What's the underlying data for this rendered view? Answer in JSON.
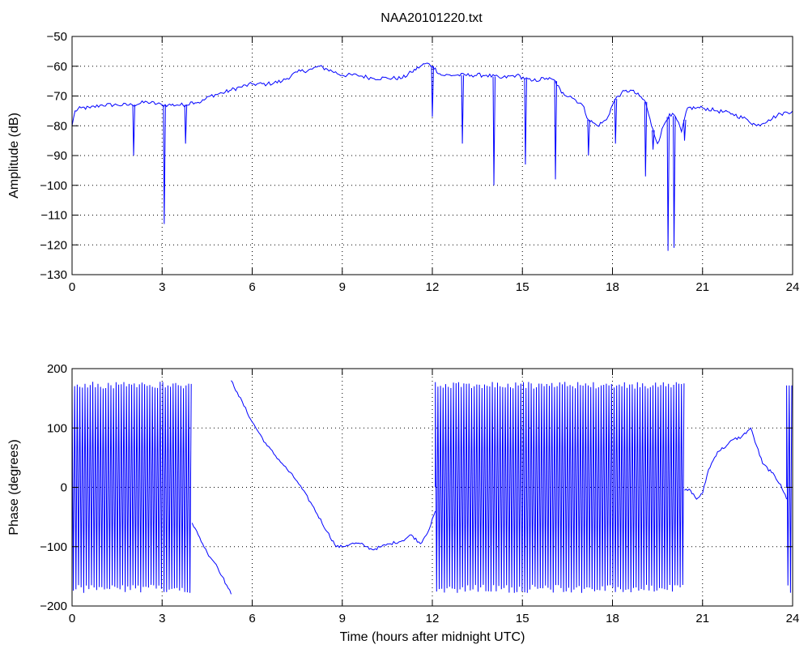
{
  "figure": {
    "title": "NAA20101220.txt"
  },
  "chart_data": [
    {
      "type": "line",
      "title": "NAA20101220.txt",
      "xlabel": "",
      "ylabel": "Amplitude (dB)",
      "xlim": [
        0,
        24
      ],
      "ylim": [
        -130,
        -50
      ],
      "xticks": [
        0,
        3,
        6,
        9,
        12,
        15,
        18,
        21,
        24
      ],
      "yticks": [
        -130,
        -120,
        -110,
        -100,
        -90,
        -80,
        -70,
        -60,
        -50
      ],
      "grid": true,
      "color": "#0000ff",
      "series": [
        {
          "x": [
            0,
            0.1,
            0.3,
            0.6,
            1.0,
            1.5,
            2.0,
            2.5,
            3.0,
            3.2,
            3.5,
            3.8,
            4.0,
            4.3,
            4.6,
            5.0,
            5.3,
            5.6,
            6.0,
            6.5,
            7.0,
            7.5,
            8.0,
            8.2,
            8.5,
            9.0,
            9.5,
            10.0,
            10.5,
            11.0,
            11.3,
            11.6,
            11.8,
            12.0,
            12.3,
            12.8,
            13.3,
            13.8,
            14.3,
            14.8,
            15.3,
            15.8,
            16.1,
            16.3,
            16.6,
            17.0,
            17.2,
            17.5,
            17.8,
            18.0,
            18.1,
            18.3,
            18.6,
            18.9,
            19.1,
            19.3,
            19.5,
            19.7,
            19.9,
            20.1,
            20.3,
            20.5,
            20.8,
            21.0,
            21.5,
            22.0,
            22.5,
            22.8,
            23.2,
            23.6,
            24.0
          ],
          "y": [
            -80,
            -75,
            -74,
            -74,
            -73,
            -73,
            -73,
            -72,
            -73,
            -73,
            -73,
            -73,
            -72,
            -72,
            -70,
            -69,
            -68,
            -67,
            -66,
            -66,
            -65,
            -62,
            -61,
            -60,
            -61,
            -63,
            -63,
            -64,
            -64,
            -64,
            -62,
            -60,
            -59,
            -60,
            -63,
            -63,
            -63,
            -63,
            -64,
            -63,
            -65,
            -64,
            -65,
            -69,
            -70,
            -73,
            -78,
            -80,
            -78,
            -73,
            -71,
            -69,
            -68,
            -70,
            -72,
            -80,
            -86,
            -80,
            -76,
            -77,
            -82,
            -74,
            -74,
            -74,
            -75,
            -76,
            -78,
            -80,
            -78,
            -76,
            -75
          ]
        }
      ],
      "dips": [
        {
          "x": 2.05,
          "y": -90
        },
        {
          "x": 3.07,
          "y": -113
        },
        {
          "x": 3.78,
          "y": -86
        },
        {
          "x": 12.0,
          "y": -77
        },
        {
          "x": 13.0,
          "y": -86
        },
        {
          "x": 14.05,
          "y": -100
        },
        {
          "x": 15.1,
          "y": -93
        },
        {
          "x": 16.1,
          "y": -98
        },
        {
          "x": 17.2,
          "y": -90
        },
        {
          "x": 18.1,
          "y": -86
        },
        {
          "x": 19.1,
          "y": -97
        },
        {
          "x": 19.35,
          "y": -88
        },
        {
          "x": 19.85,
          "y": -122
        },
        {
          "x": 20.05,
          "y": -121
        },
        {
          "x": 20.4,
          "y": -85
        }
      ]
    },
    {
      "type": "line",
      "title": "",
      "xlabel": "Time (hours after midnight UTC)",
      "ylabel": "Phase (degrees)",
      "xlim": [
        0,
        24
      ],
      "ylim": [
        -200,
        200
      ],
      "xticks": [
        0,
        3,
        6,
        9,
        12,
        15,
        18,
        21,
        24
      ],
      "yticks": [
        -200,
        -100,
        0,
        100,
        200
      ],
      "grid": true,
      "color": "#0000ff",
      "wrap_regions": [
        {
          "x": [
            0,
            4.0
          ],
          "ymin": -178,
          "ymax": 178
        },
        {
          "x": [
            12.1,
            20.4
          ],
          "ymin": -178,
          "ymax": 178
        },
        {
          "x": [
            23.8,
            24.0
          ],
          "ymin": -178,
          "ymax": 178
        }
      ],
      "series": [
        {
          "x": [
            4.0,
            4.2,
            4.5,
            4.8,
            5.0,
            5.2,
            5.3
          ],
          "y": [
            -60,
            -80,
            -110,
            -130,
            -150,
            -170,
            -180
          ]
        },
        {
          "x": [
            5.3,
            5.5,
            6.0,
            6.5,
            7.0,
            7.5,
            8.0,
            8.5,
            8.8,
            9.0,
            9.3,
            9.6,
            9.8,
            10.0,
            10.3,
            10.6,
            11.0,
            11.3,
            11.6,
            11.9,
            12.1
          ],
          "y": [
            180,
            160,
            110,
            70,
            40,
            10,
            -30,
            -75,
            -100,
            -100,
            -95,
            -95,
            -100,
            -105,
            -100,
            -95,
            -90,
            -80,
            -95,
            -70,
            -40
          ]
        },
        {
          "x": [
            20.4,
            20.6,
            20.8,
            21.0,
            21.2,
            21.5,
            21.8,
            22.0,
            22.3,
            22.6,
            22.8,
            23.0,
            23.3,
            23.6,
            23.8
          ],
          "y": [
            -5,
            -5,
            -20,
            -10,
            30,
            60,
            70,
            80,
            85,
            100,
            70,
            40,
            25,
            5,
            -20
          ]
        }
      ]
    }
  ]
}
